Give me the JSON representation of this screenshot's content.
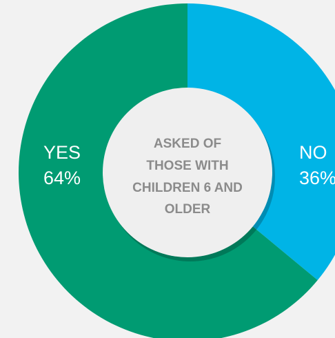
{
  "chart_data": {
    "type": "pie",
    "style": "donut",
    "categories": [
      "YES",
      "NO"
    ],
    "values": [
      64,
      36
    ],
    "slices": [
      {
        "label": "YES",
        "value": 64,
        "value_text": "64%",
        "color": "#009b72"
      },
      {
        "label": "NO",
        "value": 36,
        "value_text": "36%",
        "color": "#00b4e6"
      }
    ],
    "center_text": [
      "ASKED OF",
      "THOSE WITH",
      "CHILDREN 6 AND",
      "OLDER"
    ]
  },
  "colors": {
    "background": "#f2f2f2",
    "center": "#efefef",
    "center_text": "#8b8b8b"
  }
}
